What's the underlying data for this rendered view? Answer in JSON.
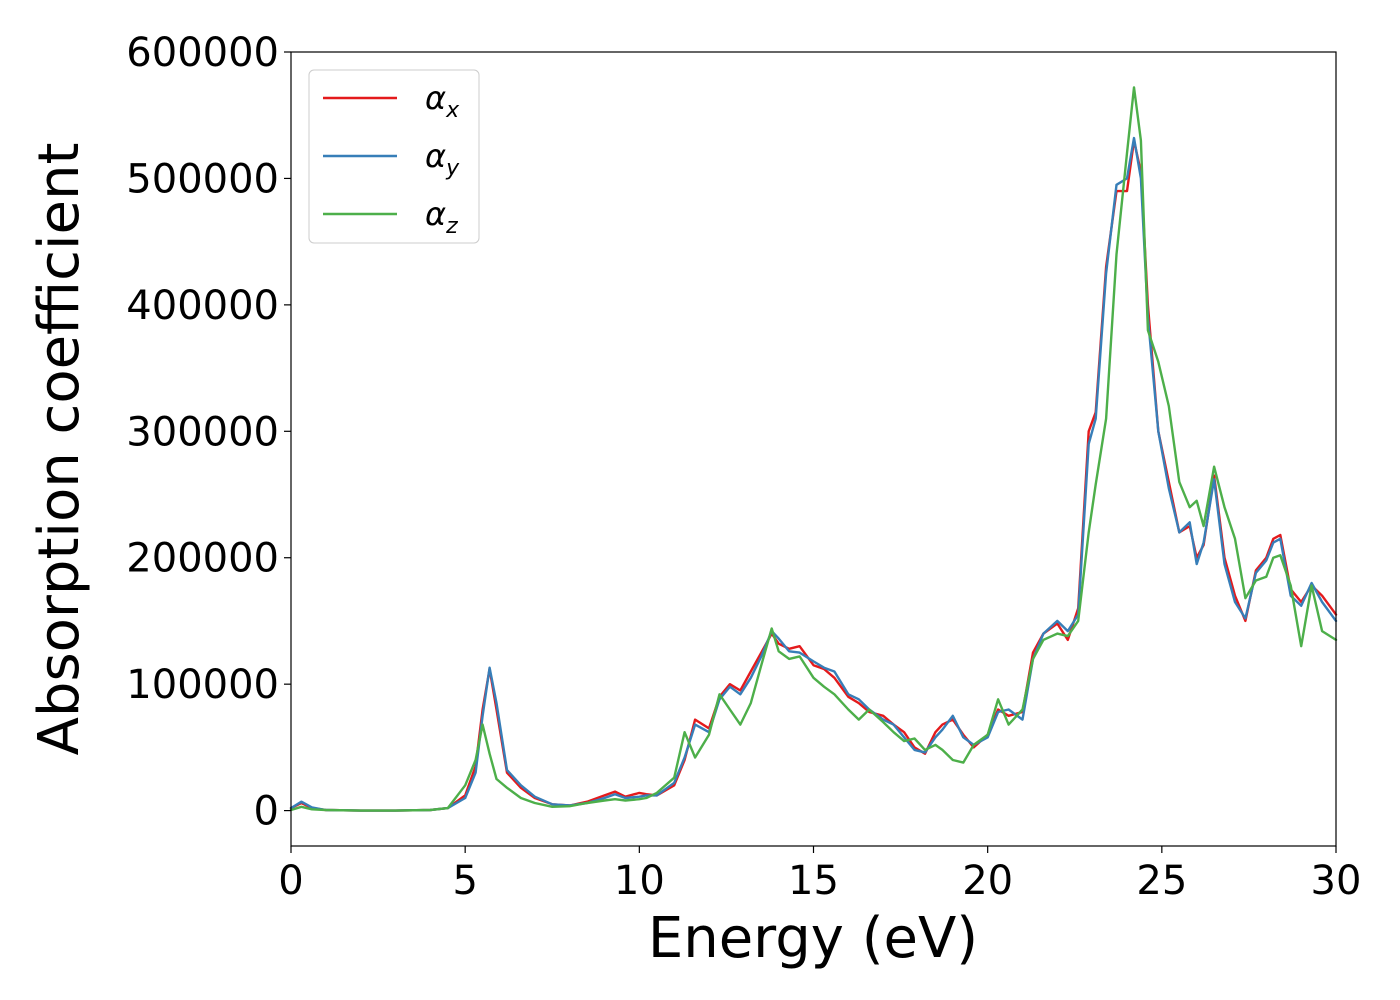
{
  "chart_data": {
    "type": "line",
    "xlabel": "Energy (eV)",
    "ylabel": "Absorption coefficient",
    "xlim": [
      0,
      30
    ],
    "ylim": [
      -28000,
      600000
    ],
    "xticks": [
      0,
      5,
      10,
      15,
      20,
      25,
      30
    ],
    "xtick_labels": [
      "0",
      "5",
      "10",
      "15",
      "20",
      "25",
      "30"
    ],
    "yticks": [
      0,
      100000,
      200000,
      300000,
      400000,
      500000,
      600000
    ],
    "ytick_labels": [
      "0",
      "100000",
      "200000",
      "300000",
      "400000",
      "500000",
      "600000"
    ],
    "grid": false,
    "legend_position": "upper-left",
    "series": [
      {
        "name": "α",
        "subscript": "x",
        "color": "#e41a1c",
        "x": [
          0,
          0.3,
          0.6,
          1.0,
          2.0,
          3.0,
          4.0,
          4.5,
          5.0,
          5.3,
          5.5,
          5.7,
          5.9,
          6.2,
          6.6,
          7.0,
          7.5,
          8.0,
          8.5,
          9.0,
          9.3,
          9.6,
          10.0,
          10.2,
          10.5,
          11.0,
          11.3,
          11.6,
          12.0,
          12.3,
          12.6,
          12.9,
          13.2,
          13.5,
          13.8,
          14.0,
          14.3,
          14.6,
          15.0,
          15.3,
          15.6,
          16.0,
          16.3,
          16.6,
          17.0,
          17.3,
          17.6,
          17.9,
          18.2,
          18.5,
          18.7,
          19.0,
          19.3,
          19.6,
          20.0,
          20.3,
          20.6,
          21.0,
          21.3,
          21.6,
          22.0,
          22.3,
          22.6,
          22.9,
          23.1,
          23.4,
          23.7,
          24.0,
          24.2,
          24.4,
          24.6,
          24.9,
          25.2,
          25.5,
          25.8,
          26.0,
          26.2,
          26.5,
          26.8,
          27.1,
          27.4,
          27.7,
          28.0,
          28.2,
          28.4,
          28.7,
          29.0,
          29.3,
          29.6,
          30.0
        ],
        "y": [
          2000,
          6000,
          2000,
          500,
          0,
          0,
          500,
          2000,
          12000,
          35000,
          80000,
          112000,
          80000,
          30000,
          18000,
          10000,
          5000,
          4000,
          7000,
          12000,
          15000,
          11000,
          14000,
          13000,
          12000,
          20000,
          40000,
          72000,
          65000,
          90000,
          100000,
          95000,
          110000,
          125000,
          140000,
          132000,
          128000,
          130000,
          115000,
          112000,
          105000,
          90000,
          85000,
          78000,
          75000,
          68000,
          62000,
          50000,
          45000,
          62000,
          68000,
          72000,
          60000,
          50000,
          60000,
          80000,
          75000,
          78000,
          125000,
          140000,
          148000,
          135000,
          160000,
          300000,
          315000,
          430000,
          490000,
          490000,
          530000,
          505000,
          400000,
          300000,
          260000,
          220000,
          225000,
          200000,
          210000,
          265000,
          200000,
          170000,
          150000,
          190000,
          200000,
          215000,
          218000,
          175000,
          165000,
          178000,
          170000,
          155000
        ]
      },
      {
        "name": "α",
        "subscript": "y",
        "color": "#377eb8",
        "x": [
          0,
          0.3,
          0.6,
          1.0,
          2.0,
          3.0,
          4.0,
          4.5,
          5.0,
          5.3,
          5.5,
          5.7,
          5.9,
          6.2,
          6.6,
          7.0,
          7.5,
          8.0,
          8.5,
          9.0,
          9.3,
          9.6,
          10.0,
          10.2,
          10.5,
          11.0,
          11.3,
          11.6,
          12.0,
          12.3,
          12.6,
          12.9,
          13.2,
          13.5,
          13.8,
          14.0,
          14.3,
          14.6,
          15.0,
          15.3,
          15.6,
          16.0,
          16.3,
          16.6,
          17.0,
          17.3,
          17.6,
          17.9,
          18.2,
          18.5,
          18.7,
          19.0,
          19.3,
          19.6,
          20.0,
          20.3,
          20.6,
          21.0,
          21.3,
          21.6,
          22.0,
          22.3,
          22.6,
          22.9,
          23.1,
          23.4,
          23.7,
          24.0,
          24.2,
          24.4,
          24.6,
          24.9,
          25.2,
          25.5,
          25.8,
          26.0,
          26.2,
          26.5,
          26.8,
          27.1,
          27.4,
          27.7,
          28.0,
          28.2,
          28.4,
          28.7,
          29.0,
          29.3,
          29.6,
          30.0
        ],
        "y": [
          2000,
          7000,
          2500,
          500,
          0,
          0,
          500,
          2000,
          10000,
          30000,
          75000,
          113000,
          85000,
          32000,
          20000,
          11000,
          5000,
          4000,
          6000,
          10000,
          13000,
          10000,
          11000,
          12000,
          12000,
          22000,
          42000,
          68000,
          62000,
          88000,
          98000,
          92000,
          105000,
          122000,
          142000,
          136000,
          126000,
          125000,
          118000,
          113000,
          110000,
          92000,
          88000,
          80000,
          72000,
          68000,
          58000,
          48000,
          46000,
          58000,
          64000,
          75000,
          58000,
          52000,
          58000,
          78000,
          80000,
          72000,
          120000,
          140000,
          150000,
          142000,
          155000,
          290000,
          310000,
          425000,
          495000,
          500000,
          532000,
          500000,
          390000,
          300000,
          255000,
          220000,
          228000,
          195000,
          212000,
          262000,
          195000,
          165000,
          152000,
          188000,
          198000,
          212000,
          215000,
          170000,
          162000,
          180000,
          165000,
          150000
        ]
      },
      {
        "name": "α",
        "subscript": "z",
        "color": "#4daf4a",
        "x": [
          0,
          0.3,
          0.6,
          1.0,
          2.0,
          3.0,
          4.0,
          4.5,
          5.0,
          5.3,
          5.5,
          5.7,
          5.9,
          6.2,
          6.6,
          7.0,
          7.5,
          8.0,
          8.5,
          9.0,
          9.3,
          9.6,
          10.0,
          10.2,
          10.5,
          11.0,
          11.3,
          11.6,
          12.0,
          12.3,
          12.6,
          12.9,
          13.2,
          13.5,
          13.8,
          14.0,
          14.3,
          14.6,
          15.0,
          15.3,
          15.6,
          16.0,
          16.3,
          16.6,
          17.0,
          17.3,
          17.6,
          17.9,
          18.2,
          18.5,
          18.7,
          19.0,
          19.3,
          19.6,
          20.0,
          20.3,
          20.6,
          21.0,
          21.3,
          21.6,
          22.0,
          22.3,
          22.6,
          22.9,
          23.1,
          23.4,
          23.7,
          24.0,
          24.2,
          24.4,
          24.6,
          24.9,
          25.2,
          25.5,
          25.8,
          26.0,
          26.2,
          26.5,
          26.8,
          27.1,
          27.4,
          27.7,
          28.0,
          28.2,
          28.4,
          28.7,
          29.0,
          29.3,
          29.6,
          30.0
        ],
        "y": [
          500,
          3000,
          1000,
          500,
          0,
          0,
          500,
          2000,
          20000,
          40000,
          68000,
          45000,
          25000,
          18000,
          10000,
          6000,
          3000,
          3500,
          6000,
          8000,
          9000,
          8000,
          9000,
          10000,
          14000,
          26000,
          62000,
          42000,
          60000,
          92000,
          80000,
          68000,
          85000,
          115000,
          144000,
          126000,
          120000,
          122000,
          105000,
          98000,
          92000,
          80000,
          72000,
          80000,
          70000,
          62000,
          55000,
          57000,
          48000,
          52000,
          48000,
          40000,
          38000,
          52000,
          60000,
          88000,
          68000,
          80000,
          120000,
          135000,
          140000,
          138000,
          150000,
          220000,
          258000,
          310000,
          440000,
          520000,
          572000,
          530000,
          380000,
          355000,
          320000,
          260000,
          240000,
          245000,
          225000,
          272000,
          240000,
          215000,
          168000,
          182000,
          185000,
          200000,
          202000,
          178000,
          130000,
          178000,
          142000,
          135000
        ]
      }
    ]
  }
}
